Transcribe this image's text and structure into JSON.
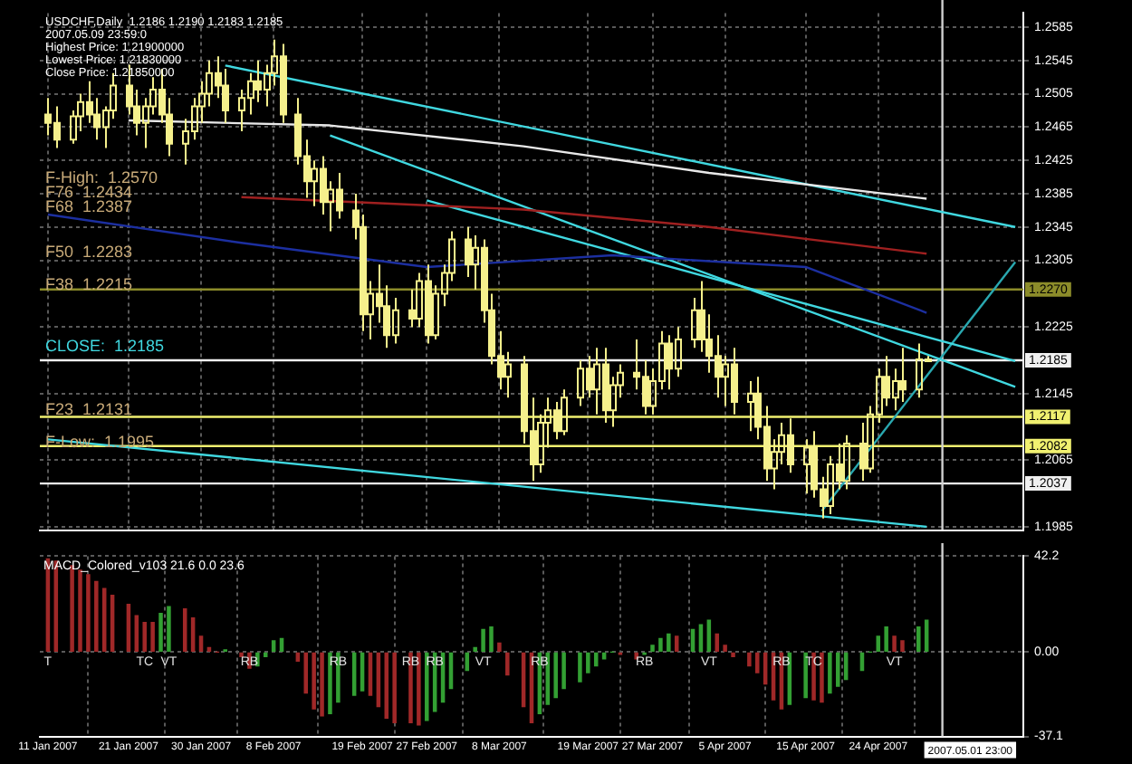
{
  "chart_data": [
    {
      "type": "candlestick",
      "color": "#f5f08c",
      "x": [
        "2007-01-11",
        "2007-01-12",
        "2007-01-14",
        "2007-01-15",
        "2007-01-16",
        "2007-01-17",
        "2007-01-18",
        "2007-01-19",
        "2007-01-21",
        "2007-01-22",
        "2007-01-23",
        "2007-01-24",
        "2007-01-25",
        "2007-01-26",
        "2007-01-28",
        "2007-01-29",
        "2007-01-30",
        "2007-01-31",
        "2007-02-01",
        "2007-02-02",
        "2007-02-04",
        "2007-02-05",
        "2007-02-06",
        "2007-02-07",
        "2007-02-08",
        "2007-02-09",
        "2007-02-11",
        "2007-02-12",
        "2007-02-13",
        "2007-02-14",
        "2007-02-15",
        "2007-02-16",
        "2007-02-18",
        "2007-02-19",
        "2007-02-20",
        "2007-02-21",
        "2007-02-22",
        "2007-02-23",
        "2007-02-25",
        "2007-02-26",
        "2007-02-27",
        "2007-02-28",
        "2007-03-01",
        "2007-03-02",
        "2007-03-04",
        "2007-03-05",
        "2007-03-06",
        "2007-03-07",
        "2007-03-08",
        "2007-03-09",
        "2007-03-11",
        "2007-03-12",
        "2007-03-13",
        "2007-03-14",
        "2007-03-15",
        "2007-03-16",
        "2007-03-18",
        "2007-03-19",
        "2007-03-20",
        "2007-03-21",
        "2007-03-22",
        "2007-03-23",
        "2007-03-25",
        "2007-03-26",
        "2007-03-27",
        "2007-03-28",
        "2007-03-29",
        "2007-03-30",
        "2007-04-01",
        "2007-04-02",
        "2007-04-03",
        "2007-04-04",
        "2007-04-05",
        "2007-04-06",
        "2007-04-08",
        "2007-04-09",
        "2007-04-10",
        "2007-04-11",
        "2007-04-12",
        "2007-04-13",
        "2007-04-15",
        "2007-04-16",
        "2007-04-17",
        "2007-04-18",
        "2007-04-19",
        "2007-04-20",
        "2007-04-22",
        "2007-04-23",
        "2007-04-24",
        "2007-04-25",
        "2007-04-26",
        "2007-04-27",
        "2007-04-29",
        "2007-04-30"
      ],
      "ohlc": [
        [
          1.248,
          1.25,
          1.2455,
          1.247
        ],
        [
          1.247,
          1.249,
          1.244,
          1.245
        ],
        [
          1.245,
          1.2485,
          1.2445,
          1.2478
        ],
        [
          1.2478,
          1.2505,
          1.246,
          1.2495
        ],
        [
          1.2495,
          1.252,
          1.247,
          1.248
        ],
        [
          1.248,
          1.25,
          1.245,
          1.2465
        ],
        [
          1.2465,
          1.249,
          1.244,
          1.2485
        ],
        [
          1.2485,
          1.253,
          1.2475,
          1.2515
        ],
        [
          1.2515,
          1.254,
          1.248,
          1.249
        ],
        [
          1.249,
          1.251,
          1.2455,
          1.247
        ],
        [
          1.247,
          1.25,
          1.244,
          1.249
        ],
        [
          1.249,
          1.2525,
          1.248,
          1.251
        ],
        [
          1.251,
          1.2535,
          1.247,
          1.248
        ],
        [
          1.248,
          1.25,
          1.243,
          1.2445
        ],
        [
          1.2445,
          1.2475,
          1.242,
          1.246
        ],
        [
          1.246,
          1.25,
          1.245,
          1.249
        ],
        [
          1.249,
          1.252,
          1.247,
          1.2505
        ],
        [
          1.2505,
          1.2545,
          1.249,
          1.253
        ],
        [
          1.253,
          1.255,
          1.25,
          1.2515
        ],
        [
          1.2515,
          1.2535,
          1.247,
          1.2485
        ],
        [
          1.2485,
          1.251,
          1.246,
          1.25
        ],
        [
          1.25,
          1.253,
          1.248,
          1.252
        ],
        [
          1.252,
          1.2545,
          1.2495,
          1.251
        ],
        [
          1.251,
          1.254,
          1.249,
          1.253
        ],
        [
          1.253,
          1.257,
          1.2515,
          1.255
        ],
        [
          1.255,
          1.2565,
          1.247,
          1.248
        ],
        [
          1.248,
          1.25,
          1.242,
          1.243
        ],
        [
          1.243,
          1.245,
          1.238,
          1.24
        ],
        [
          1.24,
          1.2425,
          1.237,
          1.2415
        ],
        [
          1.2415,
          1.243,
          1.236,
          1.2375
        ],
        [
          1.2375,
          1.24,
          1.234,
          1.239
        ],
        [
          1.239,
          1.241,
          1.2355,
          1.2365
        ],
        [
          1.2365,
          1.2385,
          1.233,
          1.2345
        ],
        [
          1.2345,
          1.236,
          1.222,
          1.224
        ],
        [
          1.224,
          1.228,
          1.221,
          1.2265
        ],
        [
          1.2265,
          1.23,
          1.223,
          1.225
        ],
        [
          1.225,
          1.2275,
          1.22,
          1.2215
        ],
        [
          1.2215,
          1.226,
          1.2205,
          1.2245
        ],
        [
          1.2245,
          1.227,
          1.2225,
          1.2235
        ],
        [
          1.2235,
          1.229,
          1.2225,
          1.228
        ],
        [
          1.228,
          1.23,
          1.2205,
          1.2215
        ],
        [
          1.2215,
          1.2275,
          1.221,
          1.2265
        ],
        [
          1.2265,
          1.23,
          1.225,
          1.229
        ],
        [
          1.229,
          1.234,
          1.228,
          1.233
        ],
        [
          1.233,
          1.2345,
          1.2285,
          1.23
        ],
        [
          1.23,
          1.2335,
          1.227,
          1.232
        ],
        [
          1.232,
          1.233,
          1.223,
          1.2245
        ],
        [
          1.2245,
          1.2265,
          1.218,
          1.219
        ],
        [
          1.219,
          1.222,
          1.215,
          1.2165
        ],
        [
          1.2165,
          1.2195,
          1.214,
          1.218
        ],
        [
          1.218,
          1.219,
          1.2085,
          1.21
        ],
        [
          1.21,
          1.214,
          1.204,
          1.206
        ],
        [
          1.206,
          1.212,
          1.205,
          1.211
        ],
        [
          1.211,
          1.214,
          1.208,
          1.2125
        ],
        [
          1.2125,
          1.2135,
          1.209,
          1.21
        ],
        [
          1.21,
          1.215,
          1.2095,
          1.214
        ],
        [
          1.214,
          1.2185,
          1.213,
          1.2175
        ],
        [
          1.2175,
          1.219,
          1.214,
          1.215
        ],
        [
          1.215,
          1.22,
          1.212,
          1.218
        ],
        [
          1.218,
          1.22,
          1.211,
          1.2125
        ],
        [
          1.2125,
          1.2165,
          1.2105,
          1.2155
        ],
        [
          1.2155,
          1.218,
          1.214,
          1.217
        ],
        [
          1.217,
          1.221,
          1.215,
          1.2165
        ],
        [
          1.2165,
          1.2185,
          1.212,
          1.213
        ],
        [
          1.213,
          1.2175,
          1.212,
          1.216
        ],
        [
          1.216,
          1.222,
          1.215,
          1.2205
        ],
        [
          1.2205,
          1.2215,
          1.215,
          1.2175
        ],
        [
          1.2175,
          1.2225,
          1.2165,
          1.221
        ],
        [
          1.221,
          1.226,
          1.22,
          1.2245
        ],
        [
          1.2245,
          1.228,
          1.2195,
          1.221
        ],
        [
          1.221,
          1.224,
          1.217,
          1.219
        ],
        [
          1.219,
          1.2215,
          1.214,
          1.2165
        ],
        [
          1.2165,
          1.219,
          1.213,
          1.218
        ],
        [
          1.218,
          1.22,
          1.212,
          1.2135
        ],
        [
          1.2135,
          1.216,
          1.21,
          1.2145
        ],
        [
          1.2145,
          1.2165,
          1.209,
          1.2105
        ],
        [
          1.2105,
          1.213,
          1.204,
          1.2055
        ],
        [
          1.2055,
          1.209,
          1.203,
          1.2075
        ],
        [
          1.2075,
          1.211,
          1.206,
          1.2095
        ],
        [
          1.2095,
          1.2115,
          1.205,
          1.206
        ],
        [
          1.206,
          1.209,
          1.2025,
          1.208
        ],
        [
          1.208,
          1.21,
          1.202,
          1.203
        ],
        [
          1.203,
          1.2045,
          1.1995,
          1.201
        ],
        [
          1.201,
          1.207,
          1.2,
          1.206
        ],
        [
          1.206,
          1.2085,
          1.203,
          1.204
        ],
        [
          1.204,
          1.2095,
          1.203,
          1.2085
        ],
        [
          1.2085,
          1.211,
          1.204,
          1.2055
        ],
        [
          1.2055,
          1.213,
          1.205,
          1.212
        ],
        [
          1.212,
          1.2175,
          1.211,
          1.2165
        ],
        [
          1.2165,
          1.219,
          1.213,
          1.214
        ],
        [
          1.214,
          1.2175,
          1.2125,
          1.216
        ],
        [
          1.216,
          1.22,
          1.2135,
          1.215
        ],
        [
          1.215,
          1.2205,
          1.214,
          1.2186
        ],
        [
          1.2186,
          1.219,
          1.2183,
          1.2185
        ]
      ],
      "series": [
        {
          "type": "line",
          "color": "#e8e8e8",
          "x": [
            "2007-01-21",
            "2007-02-15",
            "2007-03-11",
            "2007-04-03",
            "2007-04-30"
          ],
          "values": [
            1.2473,
            1.2467,
            1.2442,
            1.241,
            1.2379
          ]
        },
        {
          "type": "line",
          "color": "#a02020",
          "x": [
            "2007-02-04",
            "2007-03-11",
            "2007-04-03",
            "2007-04-30"
          ],
          "values": [
            1.2381,
            1.2366,
            1.2345,
            1.2313
          ]
        },
        {
          "type": "line",
          "color": "#1c2fa0",
          "x": [
            "2007-01-11",
            "2007-02-04",
            "2007-02-27",
            "2007-03-22",
            "2007-04-15",
            "2007-04-30"
          ],
          "values": [
            1.236,
            1.2326,
            1.2297,
            1.2311,
            1.2297,
            1.2242
          ]
        },
        {
          "type": "line",
          "color": "#40d8e0",
          "x": [
            "2007-02-02",
            "2007-05-11"
          ],
          "values": [
            1.2539,
            1.2345
          ]
        },
        {
          "type": "line",
          "color": "#40d8e0",
          "x": [
            "2007-02-15",
            "2007-05-11"
          ],
          "values": [
            1.2455,
            1.2153
          ]
        },
        {
          "type": "line",
          "color": "#40d8e0",
          "x": [
            "2007-02-27",
            "2007-05-11"
          ],
          "values": [
            1.2377,
            1.2184
          ]
        },
        {
          "type": "line",
          "color": "#40d8e0",
          "x": [
            "2007-01-11",
            "2007-04-30"
          ],
          "values": [
            1.209,
            1.1985
          ]
        },
        {
          "type": "line",
          "color": "#2aa8b0",
          "x": [
            "2007-04-17",
            "2007-05-11"
          ],
          "values": [
            1.2004,
            1.2303
          ]
        }
      ],
      "xlim": [
        "2007-01-10",
        "2007-05-12"
      ],
      "xticks": [
        {
          "value": "2007-01-11",
          "label": null
        },
        {
          "value": "2007-01-21",
          "label": null
        },
        {
          "value": "2007-01-30",
          "label": null
        },
        {
          "value": "2007-02-08",
          "label": null
        },
        {
          "value": "2007-02-19",
          "label": null
        },
        {
          "value": "2007-02-27",
          "label": null
        },
        {
          "value": "2007-03-08",
          "label": null
        },
        {
          "value": "2007-03-19",
          "label": null
        },
        {
          "value": "2007-03-27",
          "label": null
        },
        {
          "value": "2007-04-05",
          "label": null
        },
        {
          "value": "2007-04-15",
          "label": null
        },
        {
          "value": "2007-04-24",
          "label": null
        }
      ],
      "ylim": [
        1.1981,
        1.2602
      ],
      "yticks": [
        1.1985,
        1.2065,
        1.2145,
        1.2225,
        1.2305,
        1.2345,
        1.2385,
        1.2425,
        1.2465,
        1.2505,
        1.2545,
        1.2585
      ],
      "ref_lines": [
        {
          "axis": "y",
          "value": 1.227,
          "label": "1.2270",
          "color": "#8c8c2a"
        },
        {
          "axis": "y",
          "value": 1.2185,
          "label": "1.2185",
          "color": "#f0f0f0"
        },
        {
          "axis": "y",
          "value": 1.2117,
          "label": "1.2117",
          "color": "#f0f070"
        },
        {
          "axis": "y",
          "value": 1.2082,
          "label": "1.2082",
          "color": "#f0f070"
        },
        {
          "axis": "y",
          "value": 1.2037,
          "label": "1.2037",
          "color": "#f0f0f0"
        },
        {
          "axis": "x",
          "value": "2007-05-01T23:00",
          "color": "#d0d0d0"
        }
      ],
      "annotations": [
        "USDCHF,Daily  1.2186 1.2190 1.2183 1.2185",
        "2007.05.09 23:59:0",
        "Highest Price: 1.21900000",
        "Lowest Price: 1.21830000",
        "Close Price: 1.21850000",
        "F-High:  1.2570",
        "F76  1.2434",
        "F68  1.2387",
        "F50  1.2283",
        "F38  1.2215",
        "CLOSE:  1.2185",
        "F23  1.2131",
        "F-Low:  1.1995"
      ],
      "grid": true,
      "tick_labels": "y"
    },
    {
      "type": "bar",
      "title": "MACD_Colored_v103 21.6 0.0 23.6",
      "x": [
        "2007-01-11",
        "2007-01-12",
        "2007-01-14",
        "2007-01-15",
        "2007-01-16",
        "2007-01-17",
        "2007-01-18",
        "2007-01-19",
        "2007-01-21",
        "2007-01-22",
        "2007-01-23",
        "2007-01-24",
        "2007-01-25",
        "2007-01-26",
        "2007-01-28",
        "2007-01-29",
        "2007-01-30",
        "2007-01-31",
        "2007-02-01",
        "2007-02-02",
        "2007-02-04",
        "2007-02-05",
        "2007-02-06",
        "2007-02-07",
        "2007-02-08",
        "2007-02-09",
        "2007-02-11",
        "2007-02-12",
        "2007-02-13",
        "2007-02-14",
        "2007-02-15",
        "2007-02-16",
        "2007-02-18",
        "2007-02-19",
        "2007-02-20",
        "2007-02-21",
        "2007-02-22",
        "2007-02-23",
        "2007-02-25",
        "2007-02-26",
        "2007-02-27",
        "2007-02-28",
        "2007-03-01",
        "2007-03-02",
        "2007-03-04",
        "2007-03-05",
        "2007-03-06",
        "2007-03-07",
        "2007-03-08",
        "2007-03-09",
        "2007-03-11",
        "2007-03-12",
        "2007-03-13",
        "2007-03-14",
        "2007-03-15",
        "2007-03-16",
        "2007-03-18",
        "2007-03-19",
        "2007-03-20",
        "2007-03-21",
        "2007-03-22",
        "2007-03-23",
        "2007-03-25",
        "2007-03-26",
        "2007-03-27",
        "2007-03-28",
        "2007-03-29",
        "2007-03-30",
        "2007-04-01",
        "2007-04-02",
        "2007-04-03",
        "2007-04-04",
        "2007-04-05",
        "2007-04-06",
        "2007-04-08",
        "2007-04-09",
        "2007-04-10",
        "2007-04-11",
        "2007-04-12",
        "2007-04-13",
        "2007-04-15",
        "2007-04-16",
        "2007-04-17",
        "2007-04-18",
        "2007-04-19",
        "2007-04-20",
        "2007-04-22",
        "2007-04-23",
        "2007-04-24",
        "2007-04-25",
        "2007-04-26",
        "2007-04-27",
        "2007-04-29",
        "2007-04-30"
      ],
      "values": [
        41,
        40,
        38,
        36,
        34,
        31,
        28,
        25,
        21,
        16,
        13,
        13,
        17,
        20,
        19,
        15,
        7,
        2,
        0,
        1,
        -2,
        -7,
        -6,
        -2,
        5,
        6,
        -4,
        -18,
        -25,
        -28,
        -27,
        -22,
        -19,
        -17,
        -19,
        -24,
        -29,
        -31,
        -31,
        -32,
        -30,
        -26,
        -22,
        -16,
        -8,
        2,
        10,
        11,
        4,
        -10,
        -24,
        -31,
        -27,
        -23,
        -20,
        -16,
        -13,
        -9,
        -6,
        -3,
        0,
        -1,
        -3,
        -1,
        3,
        6,
        8,
        7,
        10,
        12,
        14,
        8,
        3,
        -2,
        -6,
        -9,
        -14,
        -21,
        -25,
        -23,
        -20,
        -21,
        -22,
        -18,
        -15,
        -12,
        -8,
        0,
        7,
        11,
        7,
        5,
        11,
        14
      ],
      "colors": [
        "#a02828",
        "#a02828",
        "#a02828",
        "#a02828",
        "#a02828",
        "#a02828",
        "#a02828",
        "#a02828",
        "#a02828",
        "#a02828",
        "#a02828",
        "#a02828",
        "#33a033",
        "#33a033",
        "#a02828",
        "#a02828",
        "#a02828",
        "#a02828",
        "#a02828",
        "#33a033",
        "#a02828",
        "#a02828",
        "#33a033",
        "#33a033",
        "#33a033",
        "#33a033",
        "#a02828",
        "#a02828",
        "#a02828",
        "#a02828",
        "#33a033",
        "#33a033",
        "#33a033",
        "#33a033",
        "#a02828",
        "#a02828",
        "#a02828",
        "#a02828",
        "#a02828",
        "#a02828",
        "#33a033",
        "#33a033",
        "#33a033",
        "#33a033",
        "#33a033",
        "#33a033",
        "#33a033",
        "#33a033",
        "#a02828",
        "#a02828",
        "#a02828",
        "#a02828",
        "#33a033",
        "#33a033",
        "#33a033",
        "#33a033",
        "#33a033",
        "#33a033",
        "#33a033",
        "#33a033",
        "#33a033",
        "#a02828",
        "#a02828",
        "#33a033",
        "#33a033",
        "#33a033",
        "#33a033",
        "#a02828",
        "#33a033",
        "#33a033",
        "#33a033",
        "#a02828",
        "#a02828",
        "#a02828",
        "#a02828",
        "#a02828",
        "#a02828",
        "#a02828",
        "#a02828",
        "#33a033",
        "#33a033",
        "#a02828",
        "#a02828",
        "#33a033",
        "#33a033",
        "#33a033",
        "#33a033",
        "#33a033",
        "#33a033",
        "#33a033",
        "#a02828",
        "#a02828",
        "#33a033",
        "#33a033"
      ],
      "xlim": [
        "2007-01-10",
        "2007-05-12"
      ],
      "xticks": [
        {
          "value": "2007-01-11",
          "label": "11 Jan 2007"
        },
        {
          "value": "2007-01-21",
          "label": "21 Jan 2007"
        },
        {
          "value": "2007-01-30",
          "label": "30 Jan 2007"
        },
        {
          "value": "2007-02-08",
          "label": "8 Feb 2007"
        },
        {
          "value": "2007-02-19",
          "label": "19 Feb 2007"
        },
        {
          "value": "2007-02-27",
          "label": "27 Feb 2007"
        },
        {
          "value": "2007-03-08",
          "label": "8 Mar 2007"
        },
        {
          "value": "2007-03-19",
          "label": "19 Mar 2007"
        },
        {
          "value": "2007-03-27",
          "label": "27 Mar 2007"
        },
        {
          "value": "2007-04-05",
          "label": "5 Apr 2007"
        },
        {
          "value": "2007-04-15",
          "label": "15 Apr 2007"
        },
        {
          "value": "2007-04-24",
          "label": "24 Apr 2007"
        }
      ],
      "ylim": [
        -37.1,
        42.2
      ],
      "yticks": [
        -37.1,
        {
          "value": 0,
          "label": "0.00"
        },
        42.2
      ],
      "ref_lines": [
        {
          "axis": "x",
          "value": "2007-05-01T23:00",
          "label": "2007.05.01 23:00",
          "color": "#d0d0d0"
        }
      ],
      "annotations": [
        {
          "text": "T",
          "x": "2007-01-11",
          "y": 0
        },
        {
          "text": "TC",
          "x": "2007-01-23",
          "y": 0
        },
        {
          "text": "VT",
          "x": "2007-01-26",
          "y": 0
        },
        {
          "text": "RB",
          "x": "2007-02-05",
          "y": 0
        },
        {
          "text": "RB",
          "x": "2007-02-16",
          "y": 0
        },
        {
          "text": "RB",
          "x": "2007-02-25",
          "y": 0
        },
        {
          "text": "RB",
          "x": "2007-02-28",
          "y": 0
        },
        {
          "text": "VT",
          "x": "2007-03-06",
          "y": 0
        },
        {
          "text": "RB",
          "x": "2007-03-13",
          "y": 0
        },
        {
          "text": "RB",
          "x": "2007-03-26",
          "y": 0
        },
        {
          "text": "VT",
          "x": "2007-04-03",
          "y": 0
        },
        {
          "text": "RB",
          "x": "2007-04-12",
          "y": 0
        },
        {
          "text": "TC",
          "x": "2007-04-16",
          "y": 0
        },
        {
          "text": "VT",
          "x": "2007-04-26",
          "y": 0
        }
      ],
      "grid": true
    }
  ]
}
